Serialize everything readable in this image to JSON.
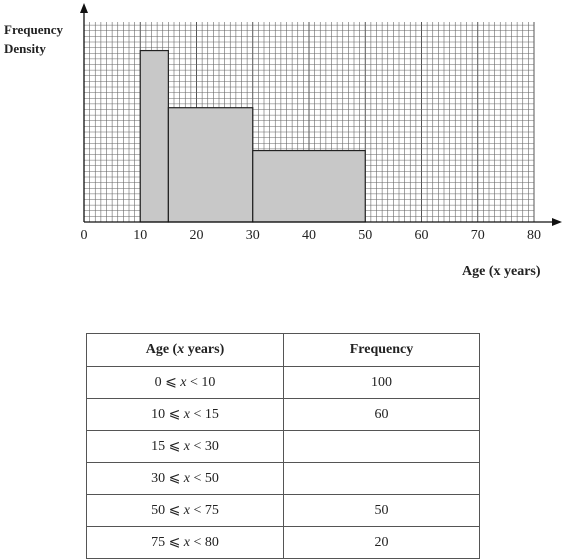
{
  "chart_data": {
    "type": "bar",
    "title": "",
    "ylabel_line1": "Frequency",
    "ylabel_line2": "Density",
    "xlabel": "Age (x years)",
    "xlim": [
      0,
      80
    ],
    "xticks": [
      0,
      10,
      20,
      30,
      40,
      50,
      60,
      70,
      80
    ],
    "grid": true,
    "bars": [
      {
        "x0": 10,
        "x1": 15,
        "frequency_density": 12
      },
      {
        "x0": 15,
        "x1": 30,
        "frequency_density": 8
      },
      {
        "x0": 30,
        "x1": 50,
        "frequency_density": 5
      }
    ],
    "ylim": [
      0,
      14
    ]
  },
  "table": {
    "headers": [
      "Age (x years)",
      "Frequency"
    ],
    "rows": [
      {
        "lo": "0",
        "hi": "10",
        "frequency": "100"
      },
      {
        "lo": "10",
        "hi": "15",
        "frequency": "60"
      },
      {
        "lo": "15",
        "hi": "30",
        "frequency": ""
      },
      {
        "lo": "30",
        "hi": "50",
        "frequency": ""
      },
      {
        "lo": "50",
        "hi": "75",
        "frequency": "50"
      },
      {
        "lo": "75",
        "hi": "80",
        "frequency": "20"
      }
    ]
  }
}
